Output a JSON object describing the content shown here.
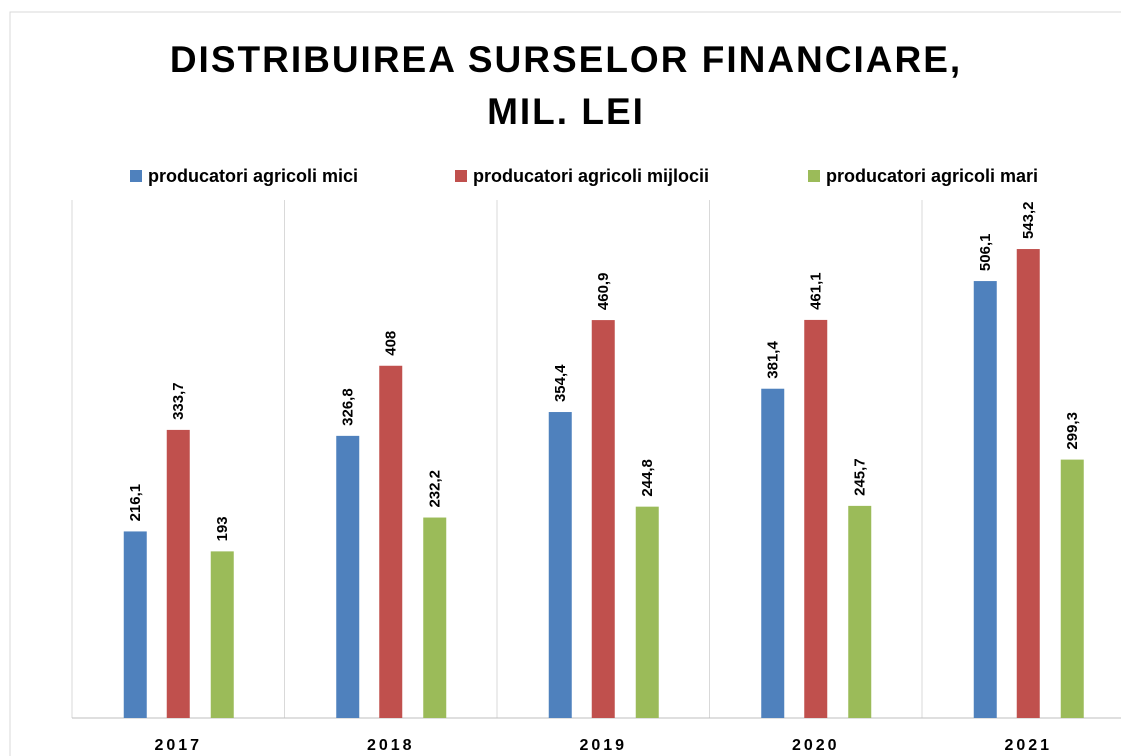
{
  "chart_data": {
    "type": "bar",
    "title": [
      "DISTRIBUIREA SURSELOR FINANCIARE,",
      "MIL. LEI"
    ],
    "categories": [
      "2017",
      "2018",
      "2019",
      "2020",
      "2021"
    ],
    "series": [
      {
        "name": "producatori agricoli mici",
        "color": "#4f81bd",
        "values": [
          216.1,
          326.8,
          354.4,
          381.4,
          506.1
        ],
        "value_labels": [
          "216,1",
          "326,8",
          "354,4",
          "381,4",
          "506,1"
        ]
      },
      {
        "name": "producatori agricoli mijlocii",
        "color": "#c0504d",
        "values": [
          333.7,
          408,
          460.9,
          461.1,
          543.2
        ],
        "value_labels": [
          "333,7",
          "408",
          "460,9",
          "461,1",
          "543,2"
        ]
      },
      {
        "name": "producatori agricoli mari",
        "color": "#9bbb59",
        "values": [
          193,
          232.2,
          244.8,
          245.7,
          299.3
        ],
        "value_labels": [
          "193",
          "232,2",
          "244,8",
          "245,7",
          "299,3"
        ]
      }
    ],
    "ylim": [
      0,
      600
    ],
    "legend": "top"
  }
}
